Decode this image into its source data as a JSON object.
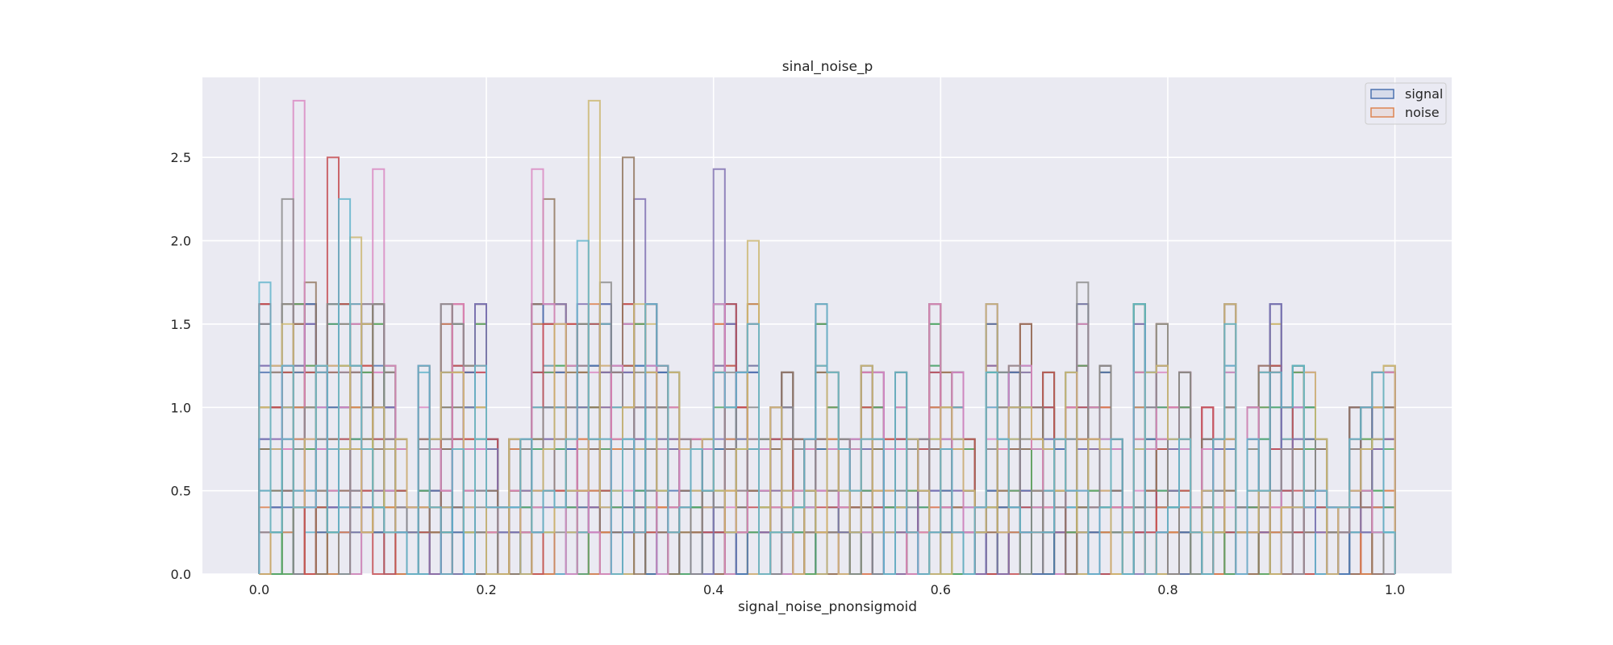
{
  "chart_data": {
    "type": "histogram",
    "title": "sinal_noise_p",
    "xlabel": "signal_noise_pnonsigmoid",
    "ylabel": "",
    "xlim": [
      -0.05,
      1.05
    ],
    "ylim": [
      0,
      2.98
    ],
    "xticks": [
      0.0,
      0.2,
      0.4,
      0.6,
      0.8,
      1.0
    ],
    "xtick_labels": [
      "0.0",
      "0.2",
      "0.4",
      "0.6",
      "0.8",
      "1.0"
    ],
    "yticks": [
      0.0,
      0.5,
      1.0,
      1.5,
      2.0,
      2.5
    ],
    "ytick_labels": [
      "0.0",
      "0.5",
      "1.0",
      "1.5",
      "2.0",
      "2.5"
    ],
    "grid": true,
    "legend_position": "top-right",
    "legend": [
      {
        "name": "signal",
        "color": "#4c72b0"
      },
      {
        "name": "noise",
        "color": "#dd8452"
      }
    ],
    "bin_range": [
      0,
      1
    ],
    "bins": 100,
    "palette": [
      "#4c72b0",
      "#dd8452",
      "#55a868",
      "#c44e52",
      "#8172b3",
      "#937860",
      "#da8bc3",
      "#8c8c8c",
      "#ccb974",
      "#64b5cd"
    ],
    "overlay_histograms": 40,
    "envelope_density": [
      1.75,
      1.25,
      2.25,
      2.84,
      1.75,
      1.25,
      2.5,
      2.25,
      2.02,
      1.62,
      2.43,
      1.25,
      0.81,
      0.4,
      1.25,
      0.81,
      1.62,
      1.62,
      1.25,
      1.62,
      0.81,
      0.4,
      0.81,
      0.81,
      2.43,
      2.25,
      1.62,
      1.5,
      2.0,
      2.84,
      1.75,
      1.25,
      2.5,
      2.25,
      1.62,
      1.25,
      1.21,
      0.81,
      0.81,
      0.81,
      2.43,
      1.62,
      1.21,
      2.0,
      0.81,
      1.0,
      1.21,
      0.81,
      0.81,
      1.62,
      1.21,
      0.81,
      0.81,
      1.25,
      1.21,
      0.81,
      1.21,
      0.81,
      0.81,
      1.62,
      1.21,
      1.21,
      0.81,
      0.4,
      1.62,
      1.21,
      1.25,
      1.5,
      1.0,
      1.21,
      0.81,
      1.21,
      1.75,
      1.0,
      1.25,
      0.81,
      0.4,
      1.62,
      1.21,
      1.5,
      1.0,
      1.21,
      0.4,
      1.0,
      0.81,
      1.62,
      0.4,
      1.0,
      1.25,
      1.62,
      1.0,
      1.25,
      1.21,
      0.81,
      0.4,
      0.4,
      1.0,
      1.0,
      1.21,
      1.25
    ]
  }
}
